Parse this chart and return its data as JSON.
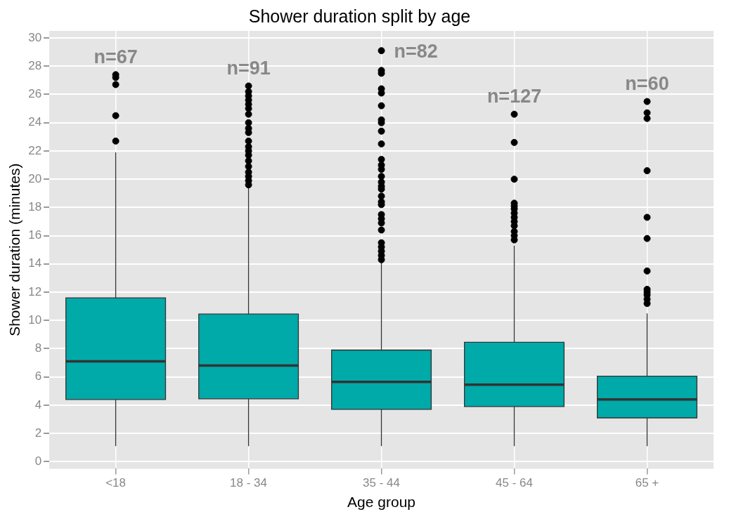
{
  "chart_data": {
    "type": "box",
    "title": "Shower duration split by age",
    "xlabel": "Age group",
    "ylabel": "Shower duration (minutes)",
    "categories": [
      "<18",
      "18 - 34",
      "35 - 44",
      "45 - 64",
      "65 +"
    ],
    "color": "#00aaa9",
    "boxes": [
      {
        "low": 1.1,
        "q1": 4.4,
        "median": 7.1,
        "q3": 11.6,
        "high": 21.9,
        "outliers": [
          27.4,
          27.2,
          26.7,
          24.5,
          22.7
        ]
      },
      {
        "low": 1.1,
        "q1": 4.45,
        "median": 6.8,
        "q3": 10.45,
        "high": 19.4,
        "outliers": [
          26.6,
          26.2,
          25.9,
          25.6,
          25.3,
          25.0,
          24.6,
          24.0,
          23.6,
          23.3,
          22.7,
          22.3,
          22.0,
          21.7,
          21.3,
          20.9,
          20.5,
          20.2,
          19.9,
          19.6
        ]
      },
      {
        "low": 1.1,
        "q1": 3.7,
        "median": 5.65,
        "q3": 7.9,
        "high": 14.1,
        "outliers": [
          29.1,
          27.7,
          27.5,
          26.4,
          26.1,
          25.2,
          24.2,
          24.0,
          23.4,
          22.5,
          21.4,
          21.0,
          20.7,
          20.2,
          19.8,
          19.5,
          19.3,
          18.8,
          18.4,
          18.2,
          17.5,
          17.2,
          16.9,
          16.4,
          15.5,
          15.2,
          14.9,
          14.6,
          14.3
        ]
      },
      {
        "low": 1.1,
        "q1": 3.9,
        "median": 5.45,
        "q3": 8.45,
        "high": 15.3,
        "outliers": [
          24.6,
          22.6,
          20.0,
          18.3,
          18.1,
          17.9,
          17.6,
          17.3,
          17.0,
          16.7,
          16.3,
          16.0,
          15.7
        ]
      },
      {
        "low": 1.1,
        "q1": 3.1,
        "median": 4.4,
        "q3": 6.05,
        "high": 10.5,
        "outliers": [
          25.5,
          24.7,
          24.3,
          20.6,
          17.3,
          15.8,
          13.5,
          12.2,
          12.0,
          11.8,
          11.5,
          11.2
        ]
      }
    ],
    "ylim": [
      -0.5,
      30.5
    ],
    "yticks": [
      0,
      2,
      4,
      6,
      8,
      10,
      12,
      14,
      16,
      18,
      20,
      22,
      24,
      26,
      28,
      30
    ],
    "grid": true,
    "annotations": [
      "n=67",
      "n=91",
      "n=82",
      "n=127",
      "n=60"
    ]
  }
}
